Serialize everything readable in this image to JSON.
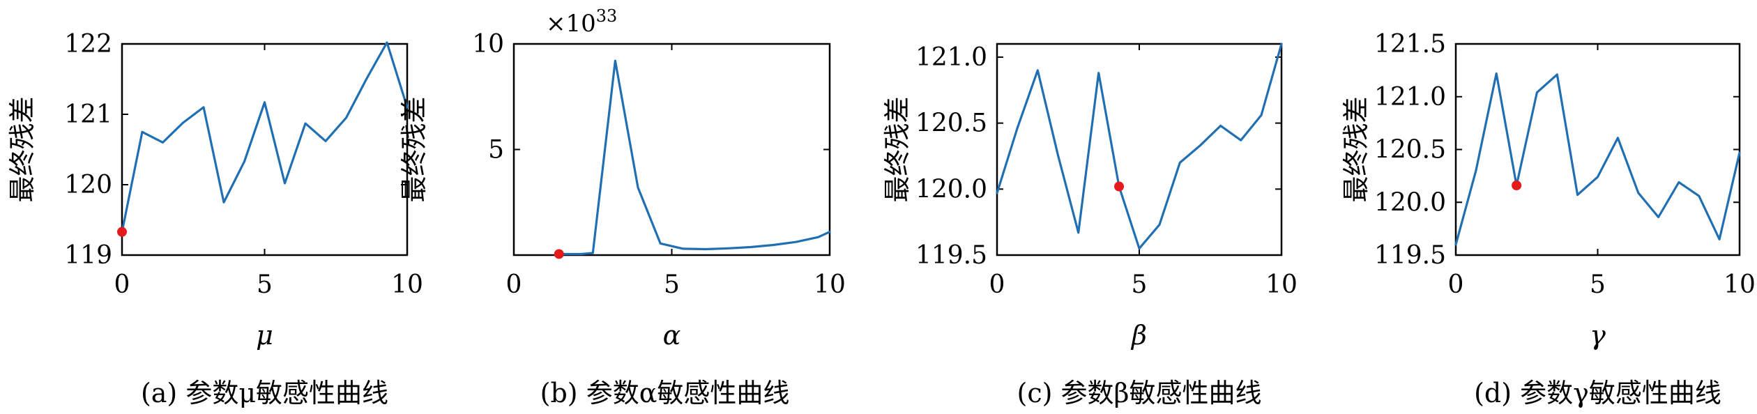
{
  "chart_data": [
    {
      "type": "line",
      "caption": "(a) 参数μ敏感性曲线",
      "xlabel": "μ",
      "ylabel": "最终残差",
      "xlim": [
        0,
        10
      ],
      "ylim": [
        119,
        122
      ],
      "xticks": [
        0,
        5,
        10
      ],
      "yticks": [
        119,
        120,
        121,
        122
      ],
      "x": [
        0,
        0.71,
        1.43,
        2.14,
        2.86,
        3.57,
        4.29,
        5.0,
        5.71,
        6.43,
        7.14,
        7.86,
        8.57,
        9.29,
        10
      ],
      "series": [
        {
          "values": [
            119.33,
            120.75,
            120.6,
            120.88,
            121.1,
            119.75,
            120.33,
            121.17,
            120.02,
            120.87,
            120.62,
            120.95,
            121.5,
            122.02,
            121.1
          ]
        }
      ],
      "highlight": {
        "x": 0,
        "y": 119.33
      }
    },
    {
      "type": "line",
      "caption": "(b) 参数α敏感性曲线",
      "xlabel": "α",
      "ylabel": "最终残差",
      "xlim": [
        0,
        10
      ],
      "ylim": [
        0,
        10
      ],
      "xticks": [
        0,
        5,
        10
      ],
      "yticks": [
        5,
        10
      ],
      "scale_label": "×10",
      "scale_exponent": "33",
      "x": [
        1.43,
        2.14,
        2.5,
        3.21,
        3.93,
        4.64,
        5.36,
        6.07,
        6.79,
        7.5,
        8.21,
        8.93,
        9.64,
        10
      ],
      "series": [
        {
          "values": [
            0.05,
            0.05,
            0.1,
            9.2,
            3.2,
            0.55,
            0.3,
            0.28,
            0.32,
            0.38,
            0.48,
            0.62,
            0.85,
            1.1
          ]
        }
      ],
      "highlight": {
        "x": 1.43,
        "y": 0.05
      }
    },
    {
      "type": "line",
      "caption": "(c) 参数β敏感性曲线",
      "xlabel": "β",
      "ylabel": "最终残差",
      "xlim": [
        0,
        10
      ],
      "ylim": [
        119.5,
        121.1
      ],
      "xticks": [
        0,
        5,
        10
      ],
      "yticks": [
        119.5,
        120.0,
        120.5,
        121.0
      ],
      "ytick_labels": [
        "119.5",
        "120.0",
        "120.5",
        "121.0"
      ],
      "x": [
        0,
        0.71,
        1.43,
        2.14,
        2.86,
        3.57,
        4.29,
        5.0,
        5.71,
        6.43,
        7.14,
        7.86,
        8.57,
        9.29,
        10
      ],
      "series": [
        {
          "values": [
            119.97,
            120.46,
            120.9,
            120.26,
            119.67,
            120.88,
            120.02,
            119.55,
            119.73,
            120.2,
            120.33,
            120.48,
            120.37,
            120.56,
            121.1
          ]
        }
      ],
      "highlight": {
        "x": 4.29,
        "y": 120.02
      }
    },
    {
      "type": "line",
      "caption": "(d) 参数γ敏感性曲线",
      "xlabel": "γ",
      "ylabel": "最终残差",
      "xlim": [
        0,
        10
      ],
      "ylim": [
        119.5,
        121.5
      ],
      "xticks": [
        0,
        5,
        10
      ],
      "yticks": [
        119.5,
        120.0,
        120.5,
        121.0,
        121.5
      ],
      "ytick_labels": [
        "119.5",
        "120.0",
        "120.5",
        "121.0",
        "121.5"
      ],
      "x": [
        0,
        0.71,
        1.43,
        2.14,
        2.86,
        3.57,
        4.29,
        5.0,
        5.71,
        6.43,
        7.14,
        7.86,
        8.57,
        9.29,
        10
      ],
      "series": [
        {
          "values": [
            119.6,
            120.3,
            121.22,
            120.16,
            121.04,
            121.21,
            120.07,
            120.24,
            120.61,
            120.09,
            119.86,
            120.19,
            120.06,
            119.65,
            120.47
          ]
        }
      ],
      "highlight": {
        "x": 2.14,
        "y": 120.16
      }
    }
  ],
  "colors": {
    "line": "#1f6fb2",
    "marker": "#e41a1c"
  }
}
